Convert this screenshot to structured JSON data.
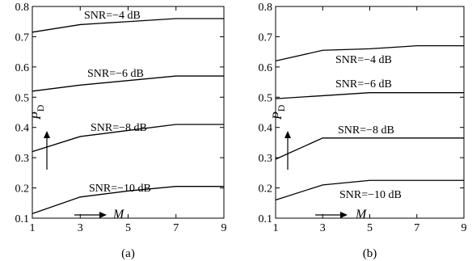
{
  "chart_data": [
    {
      "type": "line",
      "caption": "(a)",
      "x": [
        1,
        3,
        5,
        7,
        9
      ],
      "xlim": [
        1,
        9
      ],
      "ylim": [
        0.1,
        0.8
      ],
      "xticks": [
        "1",
        "3",
        "5",
        "7",
        "9"
      ],
      "yticks": [
        "0.1",
        "0.2",
        "0.3",
        "0.4",
        "0.5",
        "0.6",
        "0.7",
        "0.8"
      ],
      "xlabel": "M",
      "ylabel": "P",
      "ylabel_sub": "D",
      "grid": false,
      "legend": "none",
      "series": [
        {
          "name": "SNR=−4 dB",
          "values": [
            0.715,
            0.74,
            0.75,
            0.76,
            0.76
          ]
        },
        {
          "name": "SNR=−6 dB",
          "values": [
            0.52,
            0.54,
            0.555,
            0.57,
            0.57
          ]
        },
        {
          "name": "SNR=−8 dB",
          "values": [
            0.32,
            0.37,
            0.39,
            0.41,
            0.41
          ]
        },
        {
          "name": "SNR=−10 dB",
          "values": [
            0.115,
            0.17,
            0.19,
            0.205,
            0.205
          ]
        }
      ]
    },
    {
      "type": "line",
      "caption": "(b)",
      "x": [
        1,
        3,
        5,
        7,
        9
      ],
      "xlim": [
        1,
        9
      ],
      "ylim": [
        0.1,
        0.8
      ],
      "xticks": [
        "1",
        "3",
        "5",
        "7",
        "9"
      ],
      "yticks": [
        "0.1",
        "0.2",
        "0.3",
        "0.4",
        "0.5",
        "0.6",
        "0.7",
        "0.8"
      ],
      "xlabel": "M",
      "ylabel": "P",
      "ylabel_sub": "D",
      "grid": false,
      "legend": "none",
      "series": [
        {
          "name": "SNR=−4 dB",
          "values": [
            0.62,
            0.655,
            0.66,
            0.67,
            0.67
          ]
        },
        {
          "name": "SNR=−6 dB",
          "values": [
            0.495,
            0.505,
            0.515,
            0.515,
            0.515
          ]
        },
        {
          "name": "SNR=−8 dB",
          "values": [
            0.295,
            0.365,
            0.365,
            0.365,
            0.365
          ]
        },
        {
          "name": "SNR=−10 dB",
          "values": [
            0.16,
            0.21,
            0.225,
            0.225,
            0.225
          ]
        }
      ]
    }
  ]
}
